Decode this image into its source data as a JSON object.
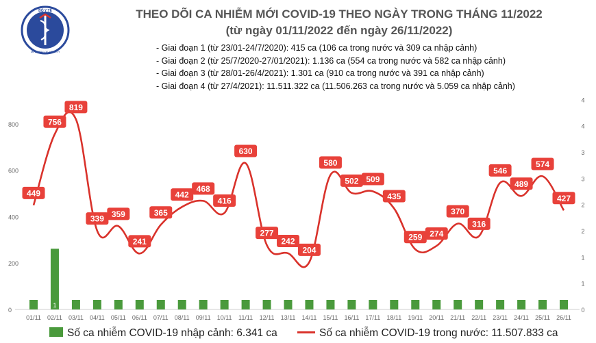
{
  "header": {
    "logo_text_top": "BỘ Y TẾ",
    "logo_text_bottom": "MINISTRY OF HEALTH",
    "title": "THEO DÕI CA NHIỄM MỚI COVID-19 THEO NGÀY TRONG THÁNG 11/2022",
    "subtitle": "(từ ngày 01/11/2022 đến ngày 26/11/2022)",
    "stages": [
      "- Giai đoạn 1 (từ 23/01-24/7/2020): 415 ca (106 ca trong nước và 309 ca nhập cảnh)",
      "- Giai đoạn 2 (từ 25/7/2020-27/01/2021): 1.136 ca (554 ca trong nước và 582 ca nhập cảnh)",
      "- Giai đoạn 3 (từ 28/01-26/4/2021): 1.301 ca (910 ca trong nước và 391 ca nhập cảnh)",
      "- Giai đoạn 4 (từ 27/4/2021): 11.511.322 ca (11.506.263 ca trong nước và 5.059 ca nhập cảnh)"
    ]
  },
  "legend": {
    "bar_label": "Số ca nhiễm COVID-19 nhập cảnh: 6.341 ca",
    "line_label": "Số ca nhiễm COVID-19 trong nước: 11.507.833 ca"
  },
  "colors": {
    "bar": "#4a9a3c",
    "line": "#d9322b",
    "label_bg": "#e8413a",
    "title": "#555555",
    "axis_text": "#666666"
  },
  "chart_data": {
    "type": "bar+line",
    "categories": [
      "01/11",
      "02/11",
      "03/11",
      "04/11",
      "05/11",
      "06/11",
      "07/11",
      "08/11",
      "09/11",
      "10/11",
      "11/11",
      "12/11",
      "13/11",
      "14/11",
      "15/11",
      "16/11",
      "17/11",
      "18/11",
      "19/11",
      "20/11",
      "21/11",
      "22/11",
      "23/11",
      "24/11",
      "25/11",
      "26/11"
    ],
    "series": [
      {
        "name": "Số ca nhiễm COVID-19 trong nước",
        "type": "line",
        "axis": "left",
        "values": [
          449,
          756,
          819,
          339,
          359,
          241,
          365,
          442,
          468,
          416,
          630,
          277,
          242,
          204,
          580,
          502,
          509,
          435,
          259,
          274,
          370,
          316,
          546,
          489,
          574,
          427
        ]
      },
      {
        "name": "Số ca nhiễm COVID-19 nhập cảnh",
        "type": "bar",
        "axis": "right",
        "values": [
          0,
          1,
          0,
          0,
          0,
          0,
          0,
          0,
          0,
          0,
          0,
          0,
          0,
          0,
          0,
          0,
          0,
          0,
          0,
          0,
          0,
          0,
          0,
          0,
          0,
          0
        ],
        "data_labels": [
          "",
          "1",
          "",
          "",
          "",
          "",
          "",
          "",
          "",
          "",
          "",
          "",
          "",
          "",
          "",
          "",
          "",
          "",
          "",
          "",
          "",
          "",
          "",
          "",
          "",
          ""
        ]
      }
    ],
    "left_axis": {
      "ylim": [
        0,
        950
      ],
      "ticks": [
        0,
        200,
        400,
        600,
        800
      ]
    },
    "right_axis": {
      "ylim": [
        0,
        4.2
      ],
      "ticks": [
        "0",
        "1",
        "1",
        "2",
        "2",
        "3",
        "3",
        "4",
        "4"
      ]
    },
    "grid": false,
    "legend_position": "bottom"
  }
}
